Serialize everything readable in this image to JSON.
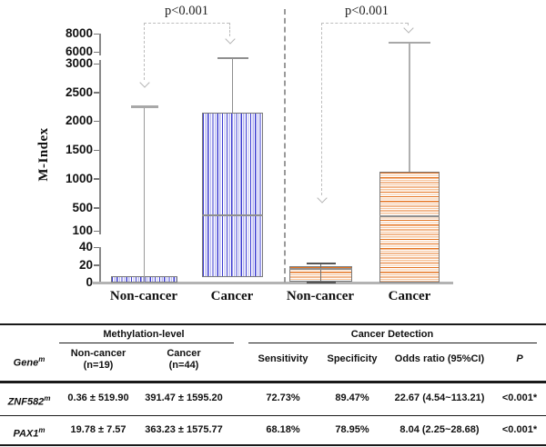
{
  "chart_data": {
    "type": "box",
    "title": "",
    "ylabel": "M-Index",
    "yticks": [
      0,
      20,
      40,
      100,
      500,
      1000,
      1500,
      2000,
      2500,
      3000,
      6000,
      8000
    ],
    "axis_breaks": [
      [
        40,
        100
      ],
      [
        3000,
        6000
      ]
    ],
    "categories": [
      "Non-cancer",
      "Cancer",
      "Non-cancer",
      "Cancer"
    ],
    "series": [
      {
        "name": "ZNF582m Non-cancer",
        "color_scheme": "blue",
        "stripes": "vertical",
        "whisker_low": 0,
        "q1": 0,
        "median": null,
        "q3": 7,
        "whisker_high": 2250
      },
      {
        "name": "ZNF582m Cancer",
        "color_scheme": "blue",
        "stripes": "vertical",
        "whisker_low": null,
        "q1": 6,
        "median": 370,
        "q3": 2150,
        "whisker_high": 4500
      },
      {
        "name": "PAX1m Non-cancer",
        "color_scheme": "orange",
        "stripes": "horizontal",
        "whisker_low": 0,
        "q1": 1,
        "median": 15,
        "q3": 18,
        "whisker_high": 22
      },
      {
        "name": "PAX1m Cancer",
        "color_scheme": "orange",
        "stripes": "horizontal",
        "whisker_low": null,
        "q1": 0,
        "median": 350,
        "q3": 1120,
        "whisker_high": 7000
      }
    ],
    "annotations": [
      {
        "text": "p<0.001",
        "targets": [
          "ZNF582m Non-cancer",
          "ZNF582m Cancer"
        ]
      },
      {
        "text": "p<0.001",
        "targets": [
          "PAX1m Non-cancer",
          "PAX1m Cancer"
        ]
      }
    ],
    "legend_position": "none",
    "grid": false
  },
  "colors": {
    "blue_stripe": "#3a3ad0",
    "blue_stripe_light": "#b4b4f0",
    "orange_stripe": "#e5731f",
    "orange_stripe_light": "#f6c49c",
    "axis_gray": "#888888",
    "baseline_gray": "#b3b3b3",
    "box_border_gray": "#7a7a7a",
    "annotation_gray": "#bdbdbd"
  },
  "table": {
    "group_headers": {
      "methylation": "Methylation-level",
      "detection": "Cancer Detection"
    },
    "columns": {
      "gene": "Gene",
      "gene_sup": "m",
      "noncancer_line1": "Non-cancer",
      "noncancer_line2": "(n=19)",
      "cancer_line1": "Cancer",
      "cancer_line2": "(n=44)",
      "sensitivity": "Sensitivity",
      "specificity": "Specificity",
      "odds": "Odds ratio (95%CI)",
      "p": "P"
    },
    "rows": [
      {
        "gene": "ZNF582",
        "gene_sup": "m",
        "noncancer": "0.36 ± 519.90",
        "cancer": "391.47 ± 1595.20",
        "sensitivity": "72.73%",
        "specificity": "89.47%",
        "odds": "22.67 (4.54~113.21)",
        "p": "<0.001*"
      },
      {
        "gene": "PAX1",
        "gene_sup": "m",
        "noncancer": "19.78 ± 7.57",
        "cancer": "363.23 ± 1575.77",
        "sensitivity": "68.18%",
        "specificity": "78.95%",
        "odds": "8.04 (2.25~28.68)",
        "p": "<0.001*"
      }
    ]
  }
}
